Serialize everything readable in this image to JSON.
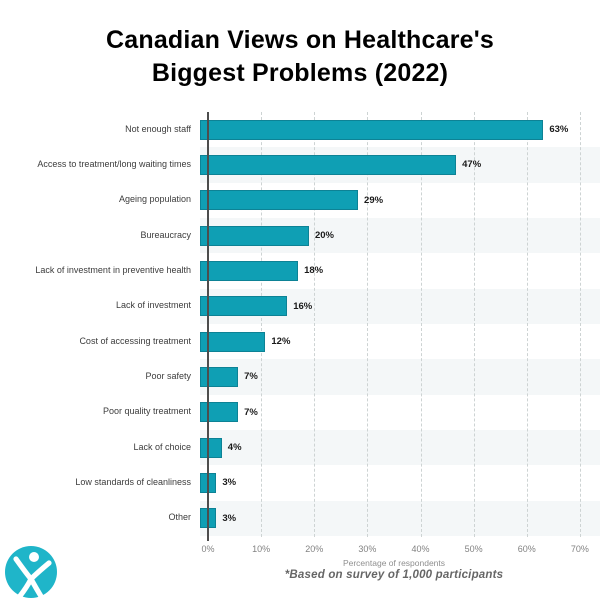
{
  "header": {
    "title_line1": "Canadian Views on Healthcare's",
    "title_line2": "Biggest Problems (2022)"
  },
  "chart_data": {
    "type": "bar",
    "orientation": "horizontal",
    "title": "Canadian Views on Healthcare's Biggest Problems (2022)",
    "categories": [
      "Not enough staff",
      "Access to treatment/long waiting times",
      "Ageing population",
      "Bureaucracy",
      "Lack of investment in preventive health",
      "Lack of investment",
      "Cost of accessing treatment",
      "Poor safety",
      "Poor quality treatment",
      "Lack of choice",
      "Low standards of cleanliness",
      "Other"
    ],
    "values": [
      63,
      47,
      29,
      20,
      18,
      16,
      12,
      7,
      7,
      4,
      3,
      3
    ],
    "value_labels": [
      "63%",
      "47%",
      "29%",
      "20%",
      "18%",
      "16%",
      "12%",
      "7%",
      "7%",
      "4%",
      "3%",
      "3%"
    ],
    "x_ticks": [
      "0%",
      "10%",
      "20%",
      "30%",
      "40%",
      "50%",
      "60%",
      "70%"
    ],
    "xlim": [
      0,
      70
    ],
    "xlabel": "Percentage of respondents",
    "grid": "vertical-dashed",
    "legend": "none",
    "bar_color": "#0f9fb4",
    "band_color": "#f4f7f8",
    "axis_color": "#4d4d4d"
  },
  "footer": {
    "note": "*Based on survey of 1,000 participants"
  },
  "logo": {
    "name": "jumping-person-logo",
    "circle_color": "#1fb5c9",
    "figure_color": "#ffffff"
  }
}
